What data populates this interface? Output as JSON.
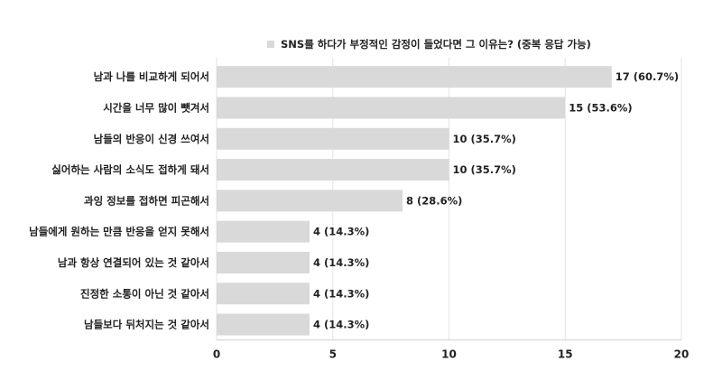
{
  "chart_data": {
    "type": "bar",
    "orientation": "horizontal",
    "series": [
      {
        "name": "SNS를 하다가 부정적인 감정이 들었다면 그 이유는? (중복 응답 가능)",
        "color": "#d9d9d9"
      }
    ],
    "categories": [
      "남과 나를 비교하게 되어서",
      "시간을 너무 많이 뺏겨서",
      "남들의 반응이 신경 쓰여서",
      "싫어하는 사람의 소식도 접하게 돼서",
      "과잉 정보를 접하면 피곤해서",
      "남들에게 원하는 만큼 반응을 얻지 못해서",
      "남과 항상 연결되어 있는 것 같아서",
      "진정한 소통이 아닌 것 같아서",
      "남들보다 뒤처지는 것 같아서"
    ],
    "values": [
      17,
      15,
      10,
      10,
      8,
      4,
      4,
      4,
      4
    ],
    "data_labels": [
      "17 (60.7%)",
      "15 (53.6%)",
      "10 (35.7%)",
      "10 (35.7%)",
      "8 (28.6%)",
      "4 (14.3%)",
      "4 (14.3%)",
      "4 (14.3%)",
      "4 (14.3%)"
    ],
    "xlim": [
      0,
      20
    ],
    "xticks": [
      0,
      5,
      10,
      15,
      20
    ],
    "grid": true,
    "legend_position": "top"
  }
}
